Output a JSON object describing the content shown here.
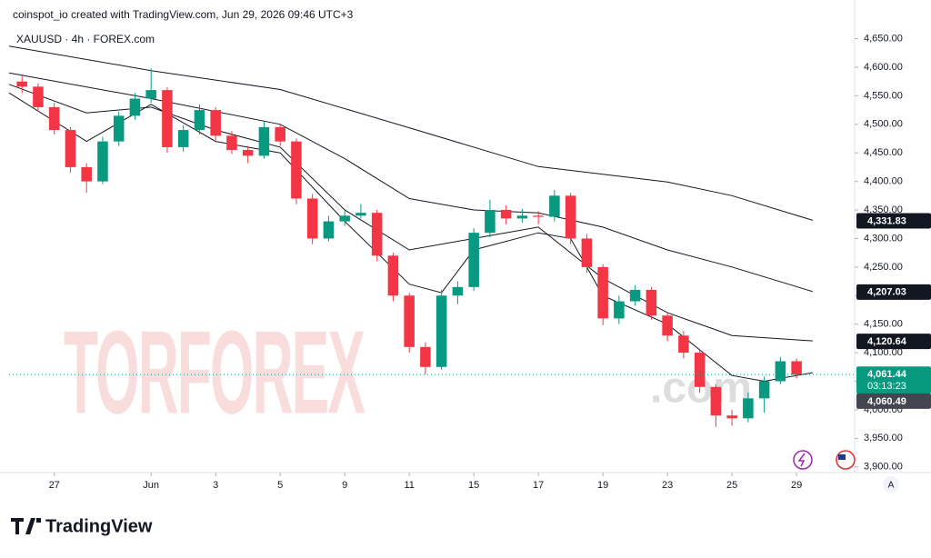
{
  "header": {
    "credit": "coinspot_io created with TradingView.com, Jun 29, 2026 09:46 UTC+3",
    "symbol": "XAUUSD · 4h · FOREX.com"
  },
  "watermark": {
    "main": "TORFOREX",
    "suffix": ".com"
  },
  "footer": {
    "brand": "TradingView",
    "scale_button": "A"
  },
  "chart_data": {
    "type": "candlestick",
    "up_color": "#089981",
    "down_color": "#f23645",
    "x": [
      -1,
      -0.5,
      0,
      0.5,
      1,
      1.5,
      2,
      2.5,
      3,
      3.5,
      4,
      4.5,
      5,
      5.5,
      6,
      6.5,
      7,
      7.5,
      8,
      8.5,
      9,
      9.5,
      10,
      10.5,
      11,
      11.5,
      12,
      12.5,
      13,
      13.5,
      14,
      14.5,
      15,
      15.5,
      16,
      16.5,
      17,
      17.5,
      18,
      18.5,
      19,
      19.5,
      20,
      20.5,
      21,
      21.5,
      22,
      22.5,
      23
    ],
    "open": [
      4575,
      4566,
      4530,
      4490,
      4425,
      4400,
      4470,
      4515,
      4545,
      4560,
      4460,
      4490,
      4525,
      4480,
      4455,
      4445,
      4495,
      4470,
      4370,
      4300,
      4330,
      4340,
      4345,
      4270,
      4200,
      4110,
      4075,
      4200,
      4215,
      4310,
      4350,
      4335,
      4340,
      4338,
      4375,
      4300,
      4250,
      4160,
      4190,
      4210,
      4165,
      4130,
      4100,
      4040,
      3990,
      3985,
      4020,
      4050,
      4085
    ],
    "high": [
      4585,
      4572,
      4538,
      4495,
      4432,
      4478,
      4522,
      4555,
      4598,
      4565,
      4498,
      4535,
      4530,
      4488,
      4462,
      4505,
      4500,
      4475,
      4378,
      4340,
      4350,
      4360,
      4350,
      4275,
      4205,
      4118,
      4210,
      4225,
      4318,
      4368,
      4358,
      4352,
      4348,
      4385,
      4380,
      4308,
      4255,
      4200,
      4218,
      4215,
      4170,
      4138,
      4105,
      4045,
      4000,
      4030,
      4058,
      4092,
      4090
    ],
    "low": [
      4555,
      4522,
      4482,
      4415,
      4380,
      4395,
      4462,
      4508,
      4538,
      4450,
      4452,
      4482,
      4472,
      4448,
      4432,
      4440,
      4462,
      4360,
      4290,
      4295,
      4322,
      4335,
      4260,
      4190,
      4100,
      4062,
      4070,
      4185,
      4208,
      4302,
      4325,
      4328,
      4325,
      4330,
      4290,
      4240,
      4148,
      4150,
      4182,
      4158,
      4120,
      4090,
      4030,
      3970,
      3972,
      3978,
      3995,
      4045,
      4055
    ],
    "close": [
      4566,
      4530,
      4490,
      4425,
      4400,
      4470,
      4515,
      4545,
      4560,
      4460,
      4490,
      4525,
      4480,
      4455,
      4445,
      4495,
      4470,
      4370,
      4300,
      4330,
      4340,
      4345,
      4270,
      4200,
      4110,
      4075,
      4200,
      4215,
      4310,
      4350,
      4335,
      4340,
      4338,
      4375,
      4300,
      4250,
      4160,
      4190,
      4210,
      4165,
      4130,
      4100,
      4040,
      3990,
      3985,
      4020,
      4050,
      4085,
      4061.44
    ],
    "moving_averages": [
      {
        "color": "#131722",
        "x": [
          -1.4,
          3,
          7,
          11,
          15,
          19,
          21,
          23.5
        ],
        "values": [
          4637,
          4594,
          4561,
          4494,
          4426,
          4399,
          4375,
          4331.83
        ]
      },
      {
        "color": "#131722",
        "x": [
          -1.4,
          3,
          7,
          9,
          11,
          13,
          15,
          17,
          19,
          21,
          23.5
        ],
        "values": [
          4590,
          4545,
          4500,
          4440,
          4370,
          4350,
          4345,
          4320,
          4280,
          4250,
          4207.03
        ]
      },
      {
        "color": "#131722",
        "x": [
          -1.4,
          1,
          3,
          5,
          7,
          9,
          11,
          13,
          15,
          17,
          19,
          21,
          23.5
        ],
        "values": [
          4570,
          4520,
          4530,
          4490,
          4460,
          4350,
          4280,
          4300,
          4320,
          4230,
          4170,
          4130,
          4120.64
        ]
      },
      {
        "color": "#131722",
        "x": [
          -1.4,
          1,
          3,
          5,
          7,
          9,
          11,
          12,
          13,
          15,
          16,
          17,
          19,
          21,
          22,
          23.5
        ],
        "values": [
          4555,
          4470,
          4535,
          4470,
          4450,
          4330,
          4220,
          4205,
          4280,
          4310,
          4300,
          4200,
          4150,
          4060,
          4050,
          4065
        ]
      }
    ],
    "xlim": [
      -1.4,
      24.8
    ],
    "ylim": [
      3890,
      4670
    ],
    "xticks": [
      {
        "value": 0,
        "label": "27"
      },
      {
        "value": 3,
        "label": "Jun"
      },
      {
        "value": 5,
        "label": "3"
      },
      {
        "value": 7,
        "label": "5"
      },
      {
        "value": 9,
        "label": "9"
      },
      {
        "value": 11,
        "label": "11"
      },
      {
        "value": 13,
        "label": "15"
      },
      {
        "value": 15,
        "label": "17"
      },
      {
        "value": 17,
        "label": "19"
      },
      {
        "value": 19,
        "label": "23"
      },
      {
        "value": 21,
        "label": "25"
      },
      {
        "value": 23,
        "label": "29"
      }
    ],
    "yticks": [
      {
        "value": 3900,
        "label": "3,900.00"
      },
      {
        "value": 3950,
        "label": "3,950.00"
      },
      {
        "value": 4000,
        "label": "4,000.00"
      },
      {
        "value": 4050,
        "label": "4,050.00"
      },
      {
        "value": 4100,
        "label": "4,100.00"
      },
      {
        "value": 4150,
        "label": "4,150.00"
      },
      {
        "value": 4200,
        "label": "4,200.00"
      },
      {
        "value": 4250,
        "label": "4,250.00"
      },
      {
        "value": 4300,
        "label": "4,300.00"
      },
      {
        "value": 4350,
        "label": "4,350.00"
      },
      {
        "value": 4400,
        "label": "4,400.00"
      },
      {
        "value": 4450,
        "label": "4,450.00"
      },
      {
        "value": 4500,
        "label": "4,500.00"
      },
      {
        "value": 4550,
        "label": "4,550.00"
      },
      {
        "value": 4600,
        "label": "4,600.00"
      },
      {
        "value": 4650,
        "label": "4,650.00"
      }
    ],
    "price_tags": [
      {
        "value": 4331.83,
        "label": "4,331.83",
        "color": "#131722"
      },
      {
        "value": 4207.03,
        "label": "4,207.03",
        "color": "#131722"
      },
      {
        "value": 4120.64,
        "label": "4,120.64",
        "color": "#131722"
      },
      {
        "value": 4061.44,
        "label": "4,061.44",
        "color": "#089981",
        "countdown": "03:13:23"
      },
      {
        "value": 4060.49,
        "label": "4,060.49",
        "color": "#434651"
      }
    ]
  }
}
